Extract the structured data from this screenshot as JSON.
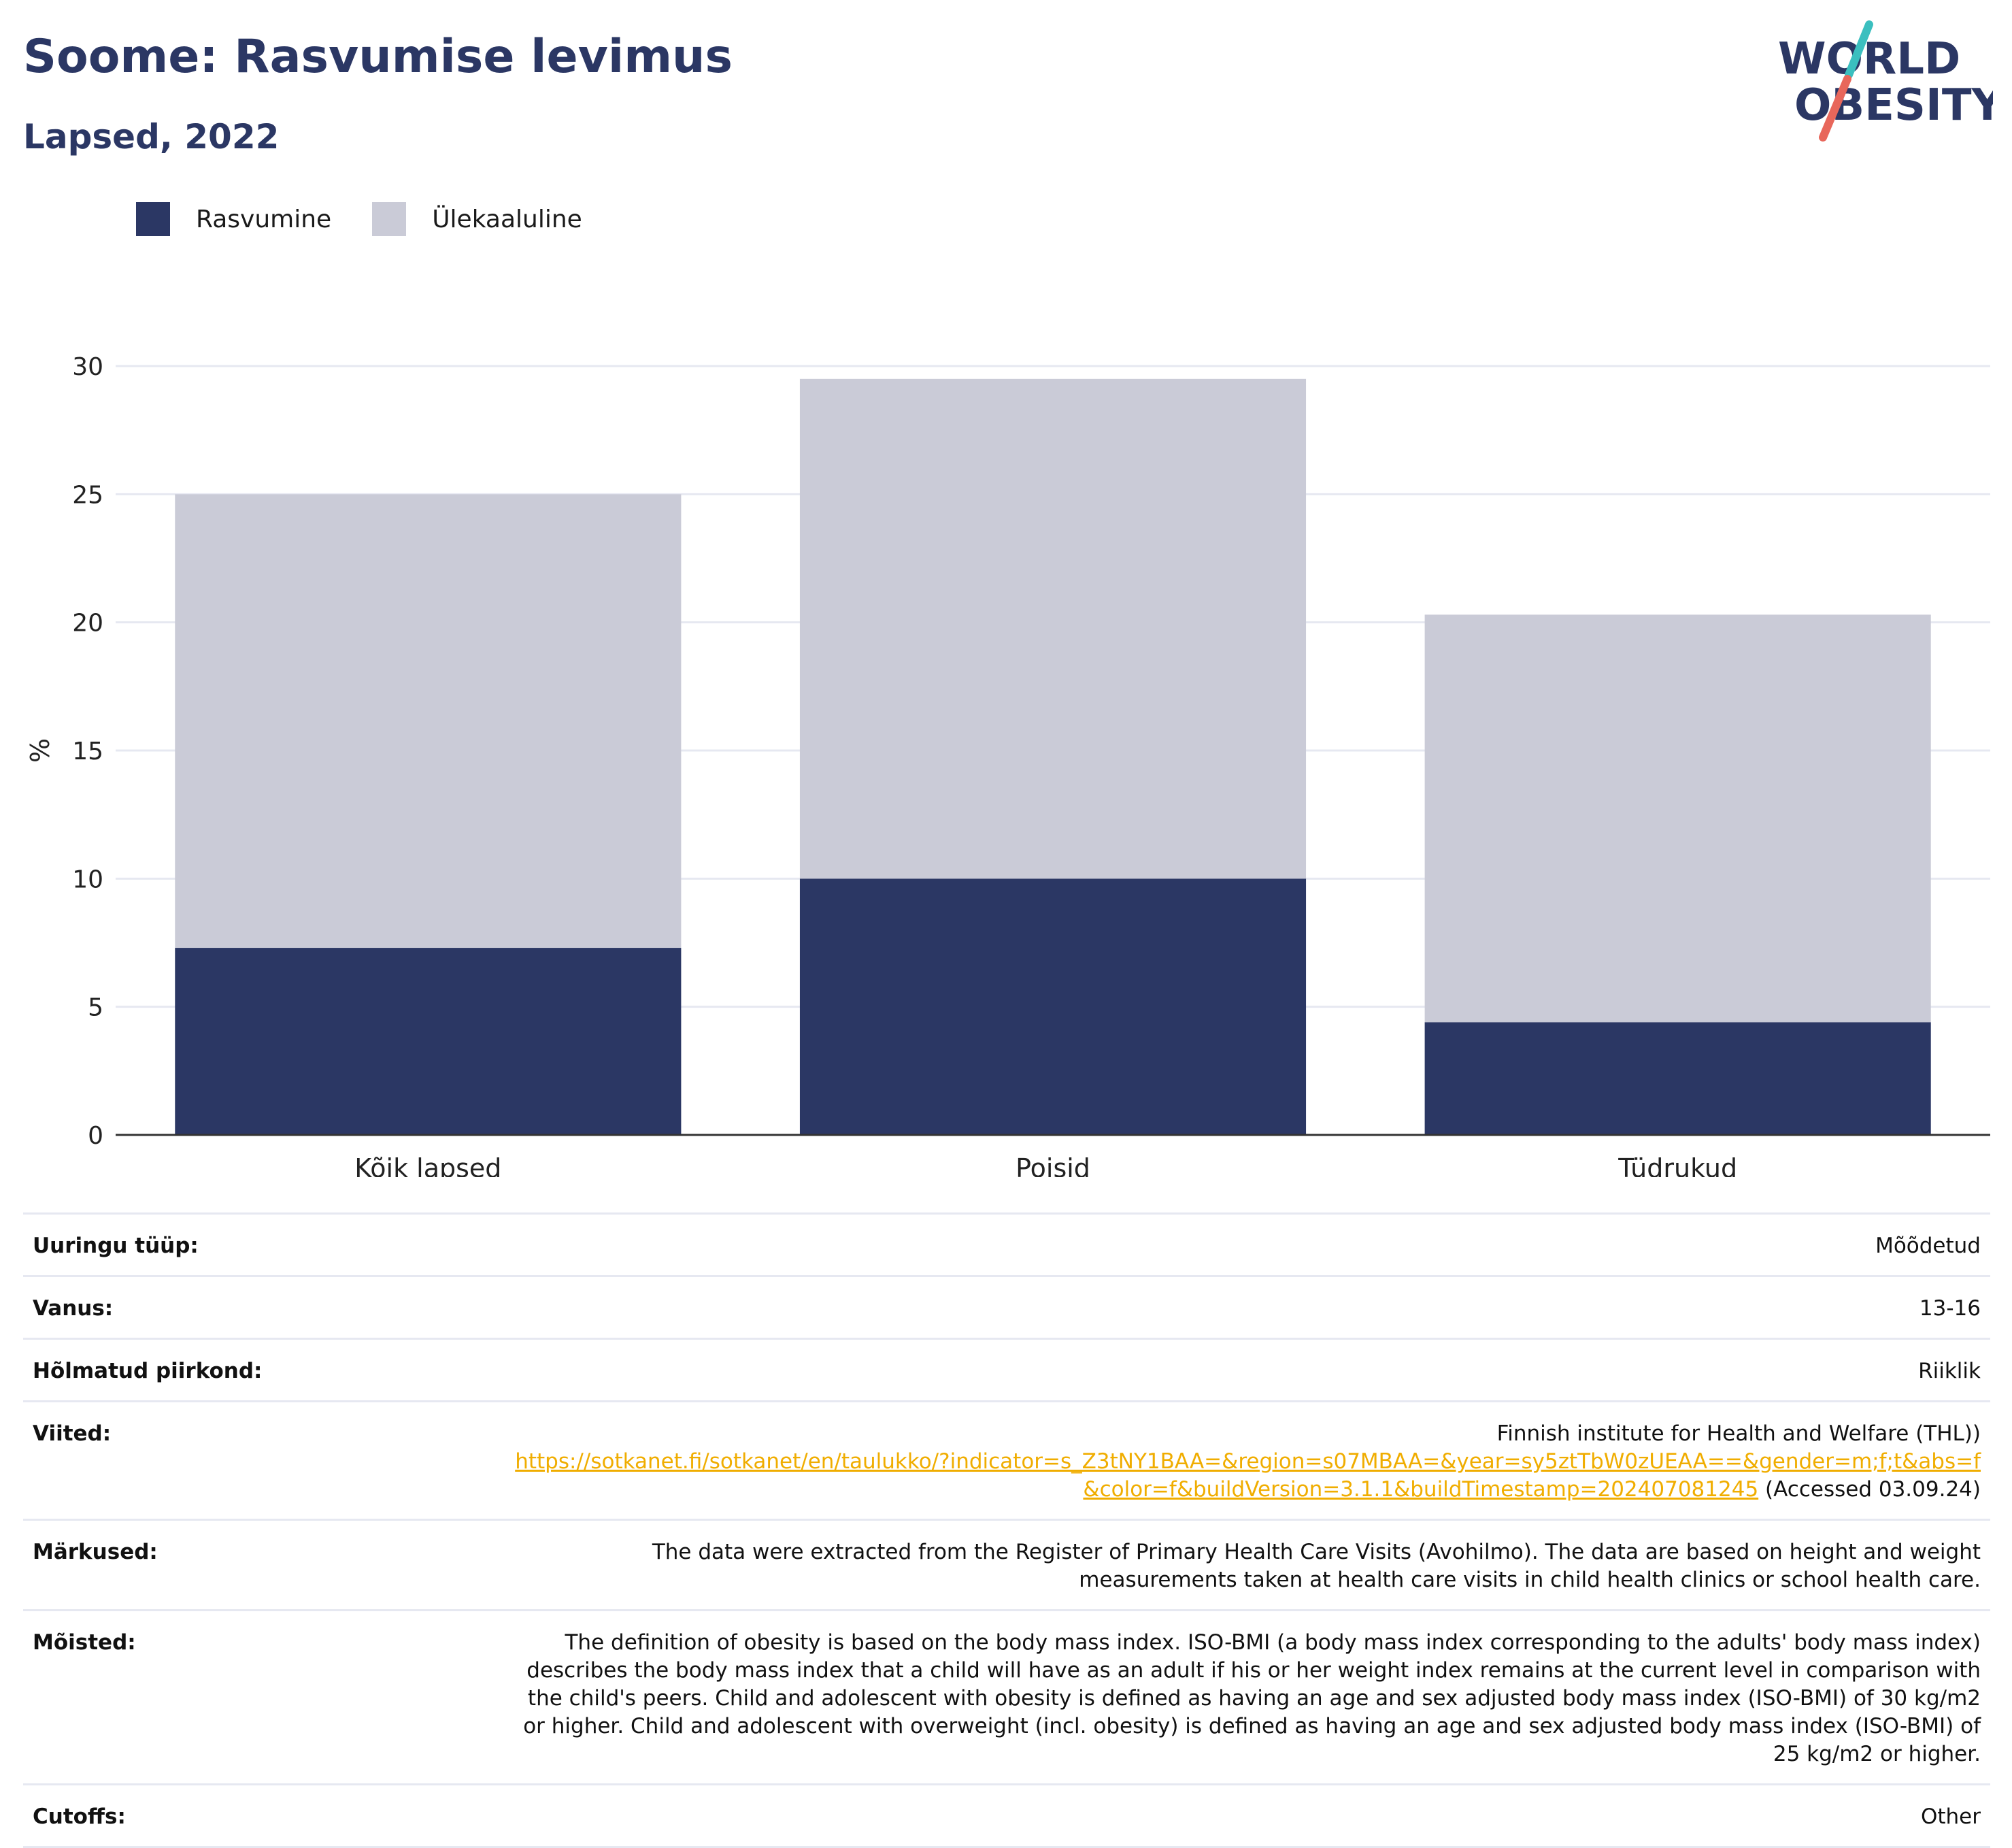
{
  "header": {
    "title": "Soome: Rasvumise levimus",
    "subtitle": "Lapsed, 2022"
  },
  "logo": {
    "line1": "WORLD",
    "line2": "OBESITY",
    "colors": {
      "text": "#2b3764",
      "slash_top": "#3bbfbf",
      "slash_bottom": "#e8675b"
    }
  },
  "legend": [
    {
      "label": "Rasvumine",
      "color": "#2b3764"
    },
    {
      "label": "Ülekaaluline",
      "color": "#cacbd7"
    }
  ],
  "chart_data": {
    "type": "bar",
    "stacked": true,
    "categories": [
      "Kõik lapsed",
      "Poisid",
      "Tüdrukud"
    ],
    "series": [
      {
        "name": "Rasvumine",
        "values": [
          7.3,
          10.0,
          4.4
        ],
        "color": "#2b3764"
      },
      {
        "name": "Ülekaaluline",
        "values": [
          17.7,
          19.5,
          15.9
        ],
        "color": "#cacbd7"
      }
    ],
    "ylabel": "%",
    "xlabel": "",
    "ylim": [
      0,
      30
    ],
    "yticks": [
      0,
      5,
      10,
      15,
      20,
      25,
      30
    ],
    "grid": true,
    "legend_position": "top-left"
  },
  "info": [
    {
      "label": "Uuringu tüüp:",
      "value": "Mõõdetud"
    },
    {
      "label": "Vanus:",
      "value": "13-16"
    },
    {
      "label": "Hõlmatud piirkond:",
      "value": "Riiklik"
    },
    {
      "label": "Viited:",
      "source": "Finnish institute for Health and Welfare (THL))",
      "link": "https://sotkanet.fi/sotkanet/en/taulukko/?indicator=s_Z3tNY1BAA=&region=s07MBAA=&year=sy5ztTbW0zUEAA==&gender=m;f;t&abs=f&color=f&buildVersion=3.1.1&buildTimestamp=202407081245",
      "accessed": " (Accessed 03.09.24)"
    },
    {
      "label": "Märkused:",
      "value": "The data were extracted from the Register of Primary Health Care Visits (Avohilmo). The data are based on height and weight measurements taken at health care visits in child health clinics or school health care."
    },
    {
      "label": "Mõisted:",
      "value": "The definition of obesity is based on the body mass index. ISO-BMI (a body mass index corresponding to the adults' body mass index) describes the body mass index that a child will have as an adult if his or her weight index remains at the current level in comparison with the child's peers. Child and adolescent with obesity is defined as having an age and sex adjusted body mass index (ISO-BMI) of 30 kg/m2 or higher. Child and adolescent with overweight (incl. obesity) is defined as having an age and sex adjusted body mass index (ISO-BMI) of 25 kg/m2 or higher."
    },
    {
      "label": "Cutoffs:",
      "value": "Other"
    }
  ]
}
